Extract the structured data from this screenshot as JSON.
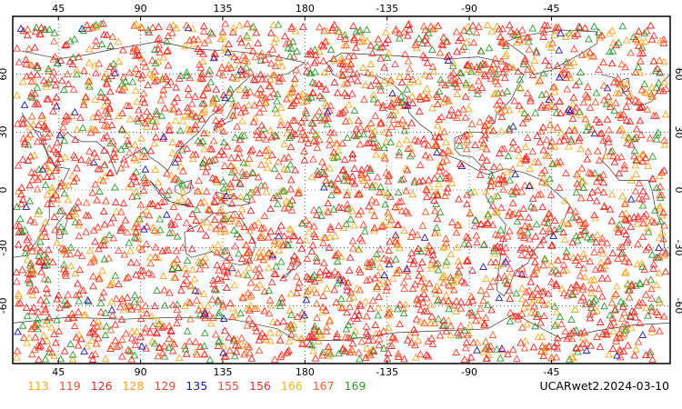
{
  "map": {
    "caption": "UCARwet2.2024-03-10",
    "colors": {
      "c113": "#f5a623",
      "c119": "#e8542c",
      "c126": "#ee2020",
      "c128": "#f2a21c",
      "c129": "#ff3a2a",
      "c135": "#1a1aa8",
      "c155": "#ff4444",
      "c156": "#e3302a",
      "c166": "#f2b22a",
      "c167": "#f06030",
      "c169": "#2e9a2e",
      "coast": "#333333",
      "grid": "#000000",
      "frame": "#000000"
    },
    "legend": [
      {
        "label": "113",
        "color": "#f5a623"
      },
      {
        "label": "119",
        "color": "#e8542c"
      },
      {
        "label": "126",
        "color": "#ee2020"
      },
      {
        "label": "128",
        "color": "#f2a21c"
      },
      {
        "label": "129",
        "color": "#ff3a2a"
      },
      {
        "label": "135",
        "color": "#1a1aa8"
      },
      {
        "label": "155",
        "color": "#ff4444"
      },
      {
        "label": "156",
        "color": "#e3302a"
      },
      {
        "label": "166",
        "color": "#f2b22a"
      },
      {
        "label": "167",
        "color": "#f06030"
      },
      {
        "label": "169",
        "color": "#2e9a2e"
      }
    ],
    "projection": "cylindrical, Pacific-centered (central meridian 180)",
    "lon_range": [
      20,
      380
    ],
    "lat_range": [
      -90,
      90
    ],
    "lon_ticks": [
      "45",
      "90",
      "135",
      "180",
      "-135",
      "-90",
      "-45"
    ],
    "lon_tick_values": [
      45,
      90,
      135,
      180,
      225,
      270,
      315
    ],
    "lat_ticks": [
      "60",
      "30",
      "0",
      "-30",
      "-60"
    ],
    "lat_tick_values": [
      60,
      30,
      0,
      -30,
      -60
    ],
    "grid": true,
    "marker": "open triangle",
    "observation_count_approx": 3500
  }
}
